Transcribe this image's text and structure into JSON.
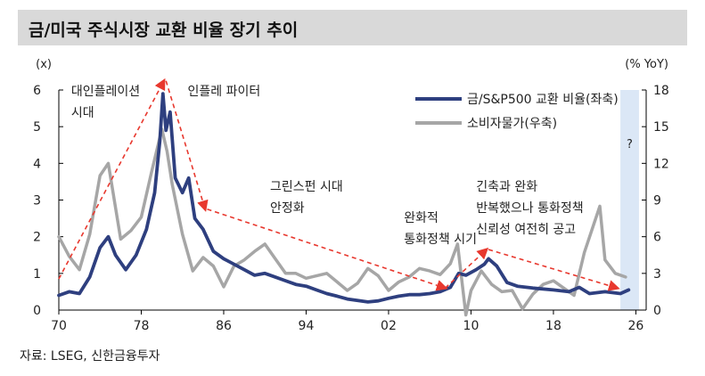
{
  "title": "금/미국 주식시장 교환 비율 장기 추이",
  "source": "자료: LSEG, 신한금융투자",
  "chart_data": {
    "type": "line",
    "title": "금/미국 주식시장 교환 비율 장기 추이",
    "left_axis_unit": "(x)",
    "right_axis_unit": "(% YoY)",
    "left_ylim": [
      0,
      6
    ],
    "left_yticks": [
      0,
      1,
      2,
      3,
      4,
      5,
      6
    ],
    "right_ylim": [
      0,
      18
    ],
    "right_yticks": [
      0,
      3,
      6,
      9,
      12,
      15,
      18
    ],
    "xlim": [
      1970,
      2027
    ],
    "xticks": [
      {
        "value": 1970,
        "label": "70"
      },
      {
        "value": 1978,
        "label": "78"
      },
      {
        "value": 1986,
        "label": "86"
      },
      {
        "value": 1994,
        "label": "94"
      },
      {
        "value": 2002,
        "label": "02"
      },
      {
        "value": 2010,
        "label": "10"
      },
      {
        "value": 2018,
        "label": "18"
      },
      {
        "value": 2026,
        "label": "26"
      }
    ],
    "legend": [
      {
        "name": "금/S&P500 교환 비율(좌축)",
        "color": "#2e3f7f"
      },
      {
        "name": "소비자물가(우축)",
        "color": "#a6a6a6"
      }
    ],
    "series": [
      {
        "name": "금/S&P500 교환 비율(좌축)",
        "axis": "left",
        "color": "#2e3f7f",
        "x": [
          1970,
          1971,
          1972,
          1973,
          1974,
          1974.8,
          1975.5,
          1976.5,
          1977.5,
          1978.5,
          1979.3,
          1979.8,
          1980.1,
          1980.4,
          1980.8,
          1981.3,
          1982,
          1982.6,
          1983.2,
          1984,
          1985,
          1986,
          1987,
          1988,
          1989,
          1990,
          1991,
          1992,
          1993,
          1994,
          1995,
          1996,
          1997,
          1998,
          1999,
          2000,
          2001,
          2002,
          2003,
          2004,
          2005,
          2006,
          2007,
          2008,
          2008.8,
          2009.5,
          2010.5,
          2011.3,
          2011.7,
          2012.5,
          2013.5,
          2014.5,
          2016,
          2018,
          2019.5,
          2020.5,
          2021.5,
          2023,
          2024.5,
          2025.3
        ],
        "values": [
          0.4,
          0.5,
          0.45,
          0.9,
          1.7,
          2.0,
          1.5,
          1.1,
          1.5,
          2.2,
          3.2,
          4.6,
          5.9,
          4.9,
          5.4,
          3.6,
          3.2,
          3.6,
          2.5,
          2.2,
          1.6,
          1.4,
          1.25,
          1.1,
          0.95,
          1.0,
          0.9,
          0.8,
          0.7,
          0.65,
          0.55,
          0.45,
          0.38,
          0.3,
          0.26,
          0.22,
          0.25,
          0.32,
          0.38,
          0.42,
          0.42,
          0.45,
          0.5,
          0.62,
          1.0,
          0.95,
          1.1,
          1.25,
          1.4,
          1.2,
          0.75,
          0.65,
          0.6,
          0.55,
          0.5,
          0.62,
          0.45,
          0.5,
          0.45,
          0.55
        ]
      },
      {
        "name": "소비자물가(우축)",
        "axis": "right",
        "color": "#a6a6a6",
        "x": [
          1970,
          1971,
          1972,
          1973,
          1974,
          1974.8,
          1976,
          1977,
          1978,
          1979,
          1980,
          1980.5,
          1981,
          1982,
          1983,
          1984,
          1985,
          1986,
          1987,
          1988,
          1989,
          1990,
          1991,
          1992,
          1993,
          1994,
          1995,
          1996,
          1997,
          1998,
          1999,
          2000,
          2001,
          2002,
          2003,
          2004,
          2005,
          2006,
          2007,
          2008,
          2008.7,
          2009.5,
          2010,
          2011,
          2012,
          2013,
          2014,
          2015,
          2016,
          2017,
          2018,
          2019,
          2020,
          2021,
          2022.5,
          2023,
          2024,
          2025
        ],
        "values": [
          6.0,
          4.4,
          3.3,
          6.2,
          11.0,
          12.0,
          5.8,
          6.5,
          7.6,
          11.3,
          14.8,
          13.0,
          10.3,
          6.2,
          3.2,
          4.3,
          3.6,
          1.9,
          3.6,
          4.1,
          4.8,
          5.4,
          4.2,
          3.0,
          3.0,
          2.6,
          2.8,
          3.0,
          2.3,
          1.6,
          2.2,
          3.4,
          2.8,
          1.6,
          2.3,
          2.7,
          3.4,
          3.2,
          2.9,
          3.8,
          5.4,
          -0.4,
          1.6,
          3.2,
          2.1,
          1.5,
          1.6,
          0.1,
          1.3,
          2.1,
          2.4,
          1.8,
          1.2,
          4.7,
          8.5,
          4.1,
          3.0,
          2.7
        ]
      }
    ],
    "forecast_band": {
      "from": 2024.5,
      "to": 2026.3,
      "label": "?"
    },
    "trend_arrows": [
      {
        "from": [
          1970,
          0.85
        ],
        "to": [
          1980.2,
          6.25
        ]
      },
      {
        "from": [
          1980.4,
          6.25
        ],
        "to": [
          1984.2,
          2.75
        ]
      },
      {
        "from": [
          1984.4,
          2.75
        ],
        "to": [
          2007.5,
          0.6
        ]
      },
      {
        "from": [
          2007.5,
          0.6
        ],
        "to": [
          2011.5,
          1.65
        ]
      },
      {
        "from": [
          2011.7,
          1.65
        ],
        "to": [
          2024.2,
          0.6
        ]
      }
    ],
    "annotations": [
      {
        "lines": [
          "대인플레이션",
          "시대"
        ],
        "x": 1971.2,
        "y": 5.85
      },
      {
        "lines": [
          "인플레 파이터"
        ],
        "x": 1982.5,
        "y": 5.85
      },
      {
        "lines": [
          "그린스펀 시대",
          "안정화"
        ],
        "x": 1990.5,
        "y": 3.25
      },
      {
        "lines": [
          "완화적",
          "통화정책 시기"
        ],
        "x": 2003.5,
        "y": 2.4
      },
      {
        "lines": [
          "긴축과 완화",
          "반복했으나 통화정책",
          "신뢰성 여전히 공고"
        ],
        "x": 2010.5,
        "y": 3.25
      }
    ]
  }
}
